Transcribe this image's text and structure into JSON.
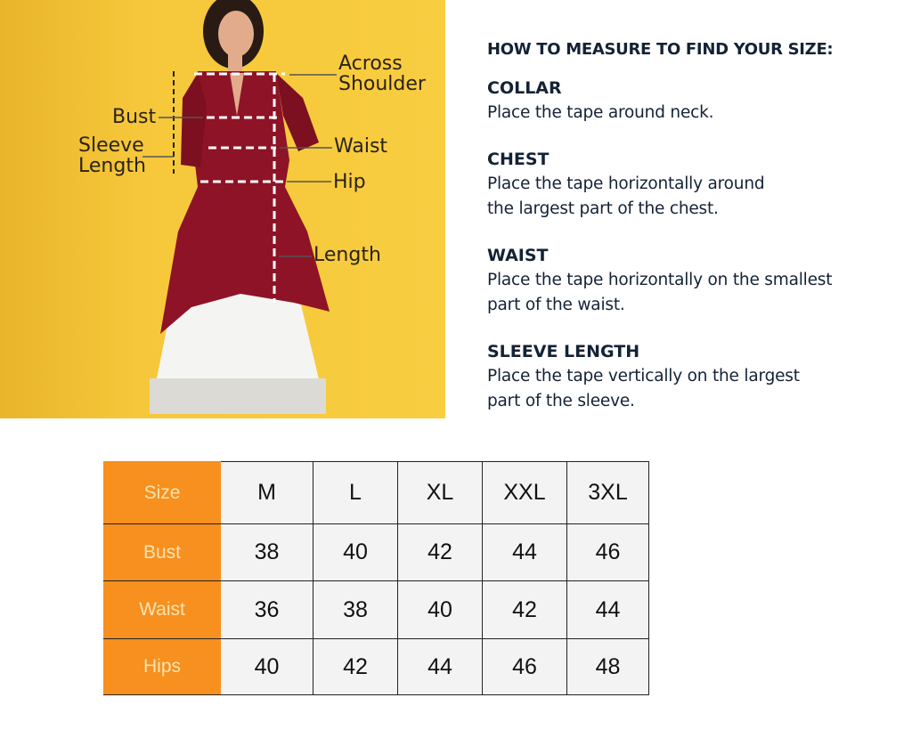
{
  "illustration": {
    "labels": {
      "across_shoulder": "Across Shoulder",
      "bust": "Bust",
      "sleeve_length": "Sleeve Length",
      "waist": "Waist",
      "hip": "Hip",
      "length": "Length"
    },
    "colors": {
      "background": "#f7c93a",
      "kurta": "#8e1326",
      "bottoms": "#f4f4f2"
    }
  },
  "guide": {
    "heading": "HOW TO MEASURE TO FIND YOUR SIZE:",
    "sections": [
      {
        "title": "COLLAR",
        "text": "Place the tape around neck."
      },
      {
        "title": "CHEST",
        "text": "Place the tape horizontally around the largest part of the chest."
      },
      {
        "title": "WAIST",
        "text": "Place the tape horizontally on the smallest part of the waist."
      },
      {
        "title": "SLEEVE LENGTH",
        "text": "Place the tape vertically on the largest part of the sleeve."
      }
    ]
  },
  "size_table": {
    "header_color": "#f7901e",
    "rows": [
      {
        "label": "Size",
        "values": [
          "M",
          "L",
          "XL",
          "XXL",
          "3XL"
        ]
      },
      {
        "label": "Bust",
        "values": [
          "38",
          "40",
          "42",
          "44",
          "46"
        ]
      },
      {
        "label": "Waist",
        "values": [
          "36",
          "38",
          "40",
          "42",
          "44"
        ]
      },
      {
        "label": "Hips",
        "values": [
          "40",
          "42",
          "44",
          "46",
          "48"
        ]
      }
    ]
  }
}
